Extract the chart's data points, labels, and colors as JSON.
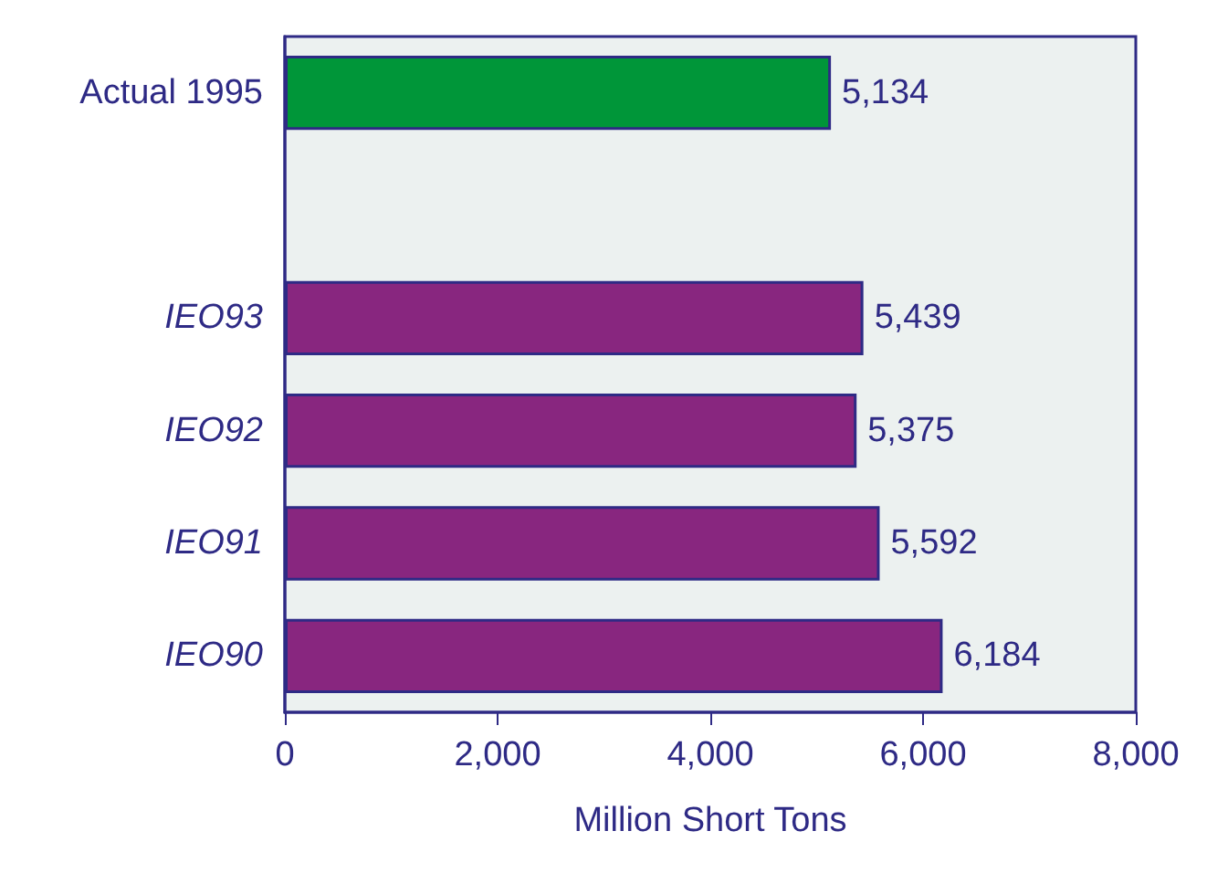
{
  "chart_data": {
    "type": "bar",
    "orientation": "horizontal",
    "xlabel": "Million Short Tons",
    "categories": [
      "Actual 1995",
      null,
      "IEO93",
      "IEO92",
      "IEO91",
      "IEO90"
    ],
    "values": [
      5134,
      null,
      5439,
      5375,
      5592,
      6184
    ],
    "colors": [
      "#009639",
      null,
      "#88267f",
      "#88267f",
      "#88267f",
      "#88267f"
    ],
    "value_labels": [
      "5,134",
      null,
      "5,439",
      "5,375",
      "5,592",
      "6,184"
    ],
    "xlim": [
      0,
      8000
    ],
    "xticks": [
      0,
      {
        "value": 2000,
        "label": "2,000"
      },
      {
        "value": 4000,
        "label": "4,000"
      },
      {
        "value": 6000,
        "label": "6,000"
      },
      {
        "value": 8000,
        "label": "8,000"
      }
    ],
    "grid": false
  }
}
